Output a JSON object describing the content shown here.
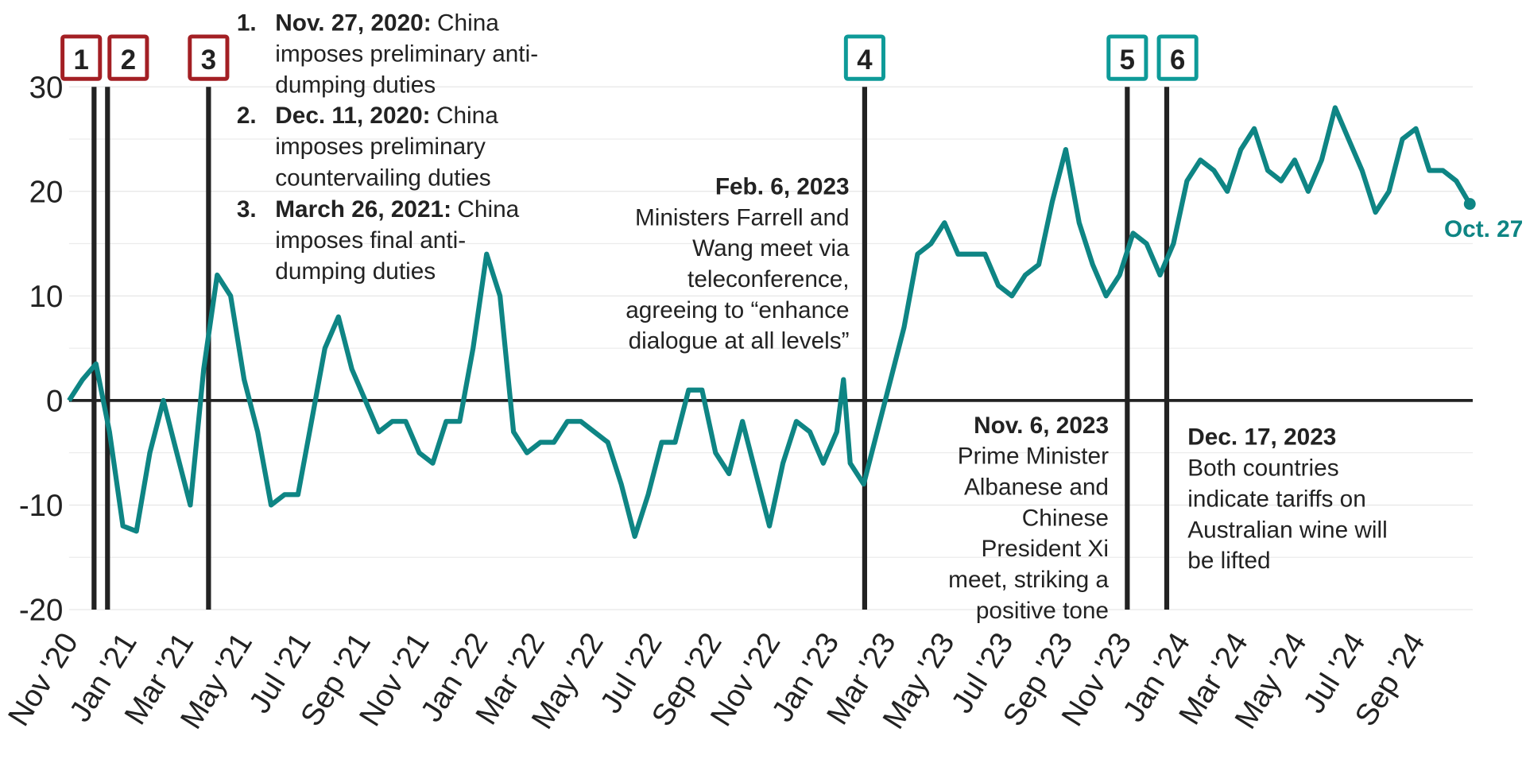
{
  "chart_data": {
    "type": "line",
    "color": "#0e8584",
    "end_label": "Oct. 27",
    "x": [
      "2020-11-01",
      "2020-11-15",
      "2020-11-29",
      "2020-12-13",
      "2020-12-27",
      "2021-01-10",
      "2021-01-24",
      "2021-02-07",
      "2021-02-21",
      "2021-03-07",
      "2021-03-21",
      "2021-04-04",
      "2021-04-18",
      "2021-05-02",
      "2021-05-16",
      "2021-05-30",
      "2021-06-13",
      "2021-06-27",
      "2021-07-11",
      "2021-07-25",
      "2021-08-08",
      "2021-08-22",
      "2021-09-05",
      "2021-09-19",
      "2021-10-03",
      "2021-10-17",
      "2021-10-31",
      "2021-11-14",
      "2021-11-28",
      "2021-12-12",
      "2021-12-26",
      "2022-01-09",
      "2022-01-23",
      "2022-02-06",
      "2022-02-20",
      "2022-03-06",
      "2022-03-20",
      "2022-04-03",
      "2022-04-17",
      "2022-05-01",
      "2022-05-15",
      "2022-05-29",
      "2022-06-12",
      "2022-06-26",
      "2022-07-10",
      "2022-07-24",
      "2022-08-07",
      "2022-08-21",
      "2022-09-04",
      "2022-09-18",
      "2022-10-02",
      "2022-10-16",
      "2022-10-30",
      "2022-11-13",
      "2022-11-27",
      "2022-12-11",
      "2022-12-25",
      "2023-01-08",
      "2023-01-15",
      "2023-01-22",
      "2023-02-05",
      "2023-02-19",
      "2023-03-05",
      "2023-03-19",
      "2023-04-02",
      "2023-04-16",
      "2023-04-30",
      "2023-05-14",
      "2023-05-28",
      "2023-06-11",
      "2023-06-25",
      "2023-07-09",
      "2023-07-23",
      "2023-08-06",
      "2023-08-20",
      "2023-09-03",
      "2023-09-17",
      "2023-10-01",
      "2023-10-15",
      "2023-10-29",
      "2023-11-12",
      "2023-11-26",
      "2023-12-10",
      "2023-12-24",
      "2024-01-07",
      "2024-01-21",
      "2024-02-04",
      "2024-02-18",
      "2024-03-03",
      "2024-03-17",
      "2024-03-31",
      "2024-04-14",
      "2024-04-28",
      "2024-05-12",
      "2024-05-26",
      "2024-06-09",
      "2024-06-23",
      "2024-07-07",
      "2024-07-21",
      "2024-08-04",
      "2024-08-18",
      "2024-09-01",
      "2024-09-15",
      "2024-09-29",
      "2024-10-13",
      "2024-10-27"
    ],
    "values": [
      0,
      2,
      3.5,
      -3,
      -12,
      -12.5,
      -5,
      0,
      -5,
      -10,
      3,
      12,
      10,
      2,
      -3,
      -10,
      -9,
      -9,
      -2,
      5,
      8,
      3,
      0,
      -3,
      -2,
      -2,
      -5,
      -6,
      -2,
      -2,
      5,
      14,
      10,
      -3,
      -5,
      -4,
      -4,
      -2,
      -2,
      -3,
      -4,
      -8,
      -13,
      -9,
      -4,
      -4,
      1,
      1,
      -5,
      -7,
      -2,
      -7,
      -12,
      -6,
      -2,
      -3,
      -6,
      -3,
      2,
      -6,
      -8,
      -3,
      2,
      7,
      14,
      15,
      17,
      14,
      14,
      14,
      11,
      10,
      12,
      13,
      19,
      24,
      17,
      13,
      10,
      12,
      16,
      15,
      12,
      15,
      21,
      23,
      22,
      20,
      24,
      26,
      22,
      21,
      23,
      20,
      23,
      28,
      25,
      22,
      18,
      20,
      25,
      26,
      22,
      22,
      21,
      18.8
    ],
    "xlim": [
      "2020-11-01",
      "2024-10-27"
    ],
    "xticks": [
      {
        "value": "2020-11-01",
        "label": "Nov '20"
      },
      {
        "value": "2021-01-01",
        "label": "Jan '21"
      },
      {
        "value": "2021-03-01",
        "label": "Mar '21"
      },
      {
        "value": "2021-05-01",
        "label": "May '21"
      },
      {
        "value": "2021-07-01",
        "label": "Jul '21"
      },
      {
        "value": "2021-09-01",
        "label": "Sep '21"
      },
      {
        "value": "2021-11-01",
        "label": "Nov '21"
      },
      {
        "value": "2022-01-01",
        "label": "Jan '22"
      },
      {
        "value": "2022-03-01",
        "label": "Mar '22"
      },
      {
        "value": "2022-05-01",
        "label": "May '22"
      },
      {
        "value": "2022-07-01",
        "label": "Jul '22"
      },
      {
        "value": "2022-09-01",
        "label": "Sep '22"
      },
      {
        "value": "2022-11-01",
        "label": "Nov '22"
      },
      {
        "value": "2023-01-01",
        "label": "Jan '23"
      },
      {
        "value": "2023-03-01",
        "label": "Mar '23"
      },
      {
        "value": "2023-05-01",
        "label": "May '23"
      },
      {
        "value": "2023-07-01",
        "label": "Jul '23"
      },
      {
        "value": "2023-09-01",
        "label": "Sep '23"
      },
      {
        "value": "2023-11-01",
        "label": "Nov '23"
      },
      {
        "value": "2024-01-01",
        "label": "Jan '24"
      },
      {
        "value": "2024-03-01",
        "label": "Mar '24"
      },
      {
        "value": "2024-05-01",
        "label": "May '24"
      },
      {
        "value": "2024-07-01",
        "label": "Jul '24"
      },
      {
        "value": "2024-09-01",
        "label": "Sep '24"
      }
    ],
    "ylim": [
      -20,
      30
    ],
    "yticks": [
      -20,
      -10,
      0,
      10,
      20,
      30
    ],
    "yminor": [
      -15,
      -5,
      5,
      15,
      25
    ],
    "grid": true,
    "events": [
      {
        "label": "1",
        "date": "2020-11-27",
        "color": "#a31f24"
      },
      {
        "label": "2",
        "date": "2020-12-11",
        "color": "#a31f24"
      },
      {
        "label": "3",
        "date": "2021-03-26",
        "color": "#a31f24"
      },
      {
        "label": "4",
        "date": "2023-02-06",
        "color": "#0e9a98"
      },
      {
        "label": "5",
        "date": "2023-11-06",
        "color": "#0e9a98"
      },
      {
        "label": "6",
        "date": "2023-12-17",
        "color": "#0e9a98"
      }
    ],
    "notes": [
      {
        "number": "1.",
        "date": "Nov. 27, 2020:",
        "text": [
          "China",
          "imposes preliminary anti-",
          "dumping duties"
        ]
      },
      {
        "number": "2.",
        "date": "Dec. 11, 2020:",
        "text": [
          "China",
          "imposes preliminary",
          "countervailing duties"
        ]
      },
      {
        "number": "3.",
        "date": "March 26, 2021:",
        "text": [
          "China",
          "imposes final anti-",
          "dumping duties"
        ]
      }
    ],
    "callouts": [
      {
        "date": "Feb. 6, 2023",
        "text": [
          "Ministers Farrell and",
          "Wang meet via",
          "teleconference,",
          "agreeing to “enhance",
          "dialogue at all levels”"
        ]
      },
      {
        "date": "Nov. 6, 2023",
        "text": [
          "Prime Minister",
          "Albanese and",
          "Chinese",
          "President Xi",
          "meet, striking a",
          "positive tone"
        ]
      },
      {
        "date": "Dec. 17, 2023",
        "text": [
          "Both countries",
          "indicate tariffs on",
          "Australian wine will",
          "be lifted"
        ]
      }
    ]
  }
}
